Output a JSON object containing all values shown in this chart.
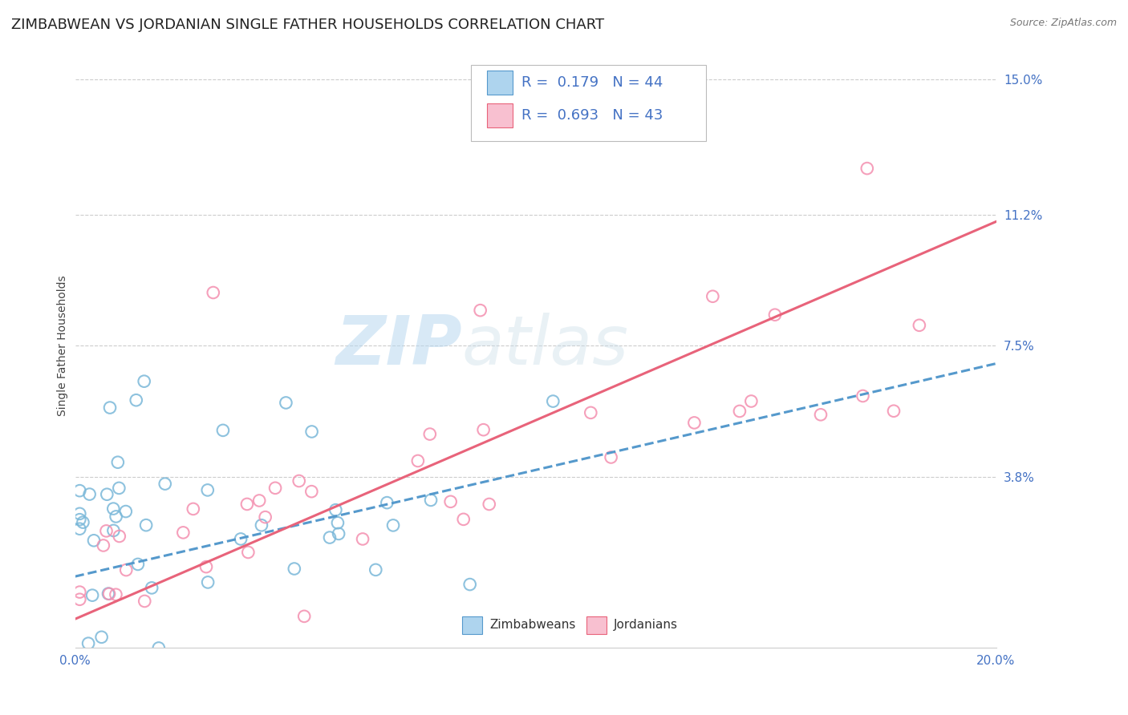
{
  "title": "ZIMBABWEAN VS JORDANIAN SINGLE FATHER HOUSEHOLDS CORRELATION CHART",
  "source": "Source: ZipAtlas.com",
  "ylabel": "Single Father Households",
  "xlim": [
    0.0,
    0.2
  ],
  "ylim": [
    -0.01,
    0.16
  ],
  "ytick_positions": [
    0.038,
    0.075,
    0.112,
    0.15
  ],
  "ytick_labels": [
    "3.8%",
    "7.5%",
    "11.2%",
    "15.0%"
  ],
  "zimbabwean_R": 0.179,
  "zimbabwean_N": 44,
  "jordanian_R": 0.693,
  "jordanian_N": 43,
  "zimbabwean_color": "#7ab8d9",
  "jordanian_color": "#f490b0",
  "zimbabwean_line_color": "#5599cc",
  "jordanian_line_color": "#e8637a",
  "legend_label_zim": "Zimbabweans",
  "legend_label_jor": "Jordanians",
  "watermark_zip": "ZIP",
  "watermark_atlas": "atlas",
  "background_color": "#ffffff",
  "title_fontsize": 13,
  "grid_color": "#cccccc"
}
